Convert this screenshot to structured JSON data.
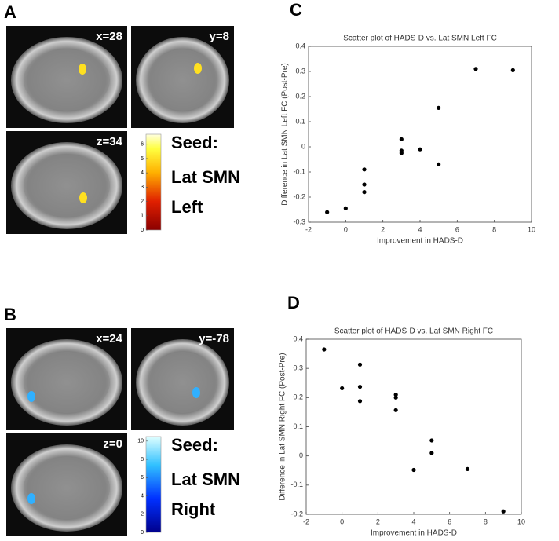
{
  "panels": [
    {
      "label": "A",
      "slices": [
        "x=28",
        "y=8",
        "z=34"
      ],
      "colorbar": {
        "ticks": [
          0,
          1,
          2,
          3,
          4,
          5,
          6
        ],
        "lim": [
          0,
          6.7
        ]
      },
      "seed": [
        "Seed:",
        "Lat SMN",
        "Left"
      ]
    },
    {
      "label": "B",
      "slices": [
        "x=24",
        "y=-78",
        "z=0"
      ],
      "colorbar": {
        "ticks": [
          0,
          2,
          4,
          6,
          8,
          10
        ],
        "lim": [
          0,
          10.5
        ]
      },
      "seed": [
        "Seed:",
        "Lat SMN",
        "Right"
      ]
    }
  ],
  "chart_data": [
    {
      "type": "scatter",
      "panel": "C",
      "title": "Scatter plot of HADS-D vs. Lat SMN Left FC",
      "x_label": "Improvement in HADS-D",
      "y_label": "Difference in Lat SMN Left FC (Post-Pre)",
      "x": [
        -1,
        0,
        1,
        1,
        1,
        3,
        3,
        3,
        4,
        5,
        5,
        7,
        9
      ],
      "values": [
        -0.26,
        -0.245,
        -0.09,
        -0.15,
        -0.18,
        0.03,
        -0.015,
        -0.025,
        -0.01,
        0.155,
        -0.07,
        0.31,
        0.305
      ],
      "color": "#000000",
      "xlim": [
        -2,
        10
      ],
      "xticks": [
        -2,
        0,
        2,
        4,
        6,
        8,
        10
      ],
      "ylim": [
        -0.3,
        0.4
      ],
      "yticks": [
        -0.3,
        -0.2,
        -0.1,
        0,
        0.1,
        0.2,
        0.3,
        0.4
      ]
    },
    {
      "type": "scatter",
      "panel": "D",
      "title": "Scatter plot of HADS-D vs. Lat SMN Right FC",
      "x_label": "Improvement in HADS-D",
      "y_label": "Difference in Lat SMN Right FC (Post-Pre)",
      "x": [
        -1,
        0,
        1,
        1,
        1,
        3,
        3,
        3,
        4,
        5,
        5,
        7,
        9
      ],
      "values": [
        0.365,
        0.232,
        0.313,
        0.237,
        0.188,
        0.21,
        0.2,
        0.157,
        -0.048,
        0.053,
        0.01,
        -0.045,
        -0.19
      ],
      "color": "#000000",
      "xlim": [
        -2,
        10
      ],
      "xticks": [
        -2,
        0,
        2,
        4,
        6,
        8,
        10
      ],
      "ylim": [
        -0.2,
        0.4
      ],
      "yticks": [
        -0.2,
        -0.1,
        0,
        0.1,
        0.2,
        0.3,
        0.4
      ]
    }
  ]
}
